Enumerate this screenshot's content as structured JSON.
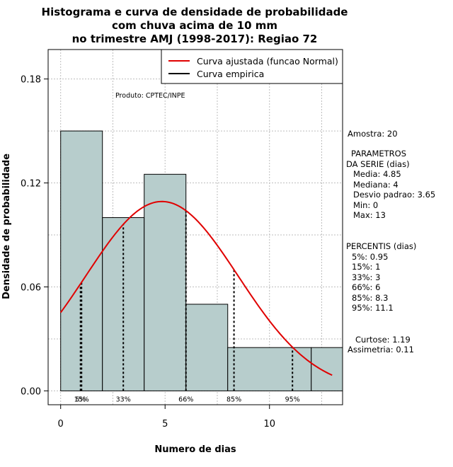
{
  "chart_data": {
    "type": "bar",
    "title_lines": [
      "Histograma e curva de densidade de probabilidade",
      "com chuva acima de 10 mm",
      "no trimestre AMJ (1998-2017): Regiao 72"
    ],
    "xlabel": "Numero de dias",
    "ylabel": "Densidade de probabilidade",
    "xlim": [
      -0.6,
      13.5
    ],
    "ylim": [
      -0.008,
      0.197
    ],
    "x_ticks": [
      0,
      5,
      10
    ],
    "y_ticks": [
      0.0,
      0.06,
      0.12,
      0.18
    ],
    "x_tick_labels": [
      "0",
      "5",
      "10"
    ],
    "y_tick_labels": [
      "0.00",
      "0.06",
      "0.12",
      "0.18"
    ],
    "grid": true,
    "bins": [
      {
        "start": 0,
        "end": 2,
        "density": 0.15
      },
      {
        "start": 2,
        "end": 4,
        "density": 0.1
      },
      {
        "start": 4,
        "end": 6,
        "density": 0.125
      },
      {
        "start": 6,
        "end": 8,
        "density": 0.05
      },
      {
        "start": 8,
        "end": 12,
        "density": 0.025
      },
      {
        "start": 12,
        "end": 13.5,
        "density": 0.025
      }
    ],
    "bar_color": "#b7cdcc",
    "normal_curve": {
      "mean": 4.85,
      "sd": 3.65,
      "x_from": 0,
      "x_to": 13,
      "color": "#e00000"
    },
    "percentile_lines": [
      {
        "value": 0.95,
        "label": "5%"
      },
      {
        "value": 1,
        "label": "15%"
      },
      {
        "value": 3,
        "label": "33%"
      },
      {
        "value": 6,
        "label": "66%"
      },
      {
        "value": 8.3,
        "label": "85%"
      },
      {
        "value": 11.1,
        "label": "95%"
      }
    ],
    "legend": {
      "position": "top-right",
      "entries": [
        {
          "label": "Curva ajustada (funcao Normal)",
          "color": "#e00000"
        },
        {
          "label": "Curva empirica",
          "color": "#000000"
        }
      ]
    },
    "credit": "Produto: CPTEC/INPE",
    "side_panel": {
      "sample": "Amostra: 20",
      "params_title_1": "PARAMETROS",
      "params_title_2": "DA SERIE (dias)",
      "params": [
        "Media: 4.85",
        "Mediana: 4",
        "Desvio padrao: 3.65",
        "Min: 0",
        "Max: 13"
      ],
      "percentis_title": "PERCENTIS (dias)",
      "percentis": [
        "5%: 0.95",
        "15%: 1",
        "33%: 3",
        "66%: 6",
        "85%: 8.3",
        "95%: 11.1"
      ],
      "curtose": "Curtose: 1.19",
      "assimetria": "Assimetria: 0.11"
    }
  }
}
